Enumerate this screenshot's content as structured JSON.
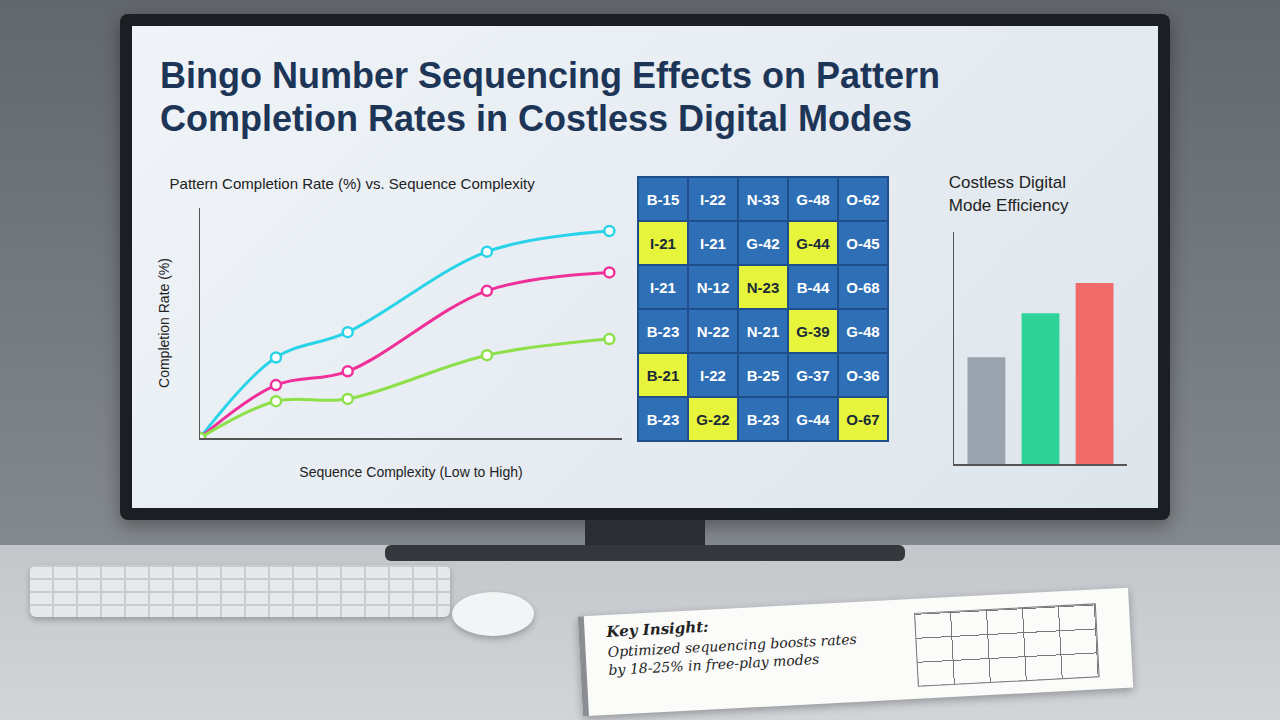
{
  "title": "Bingo Number Sequencing Effects on Pattern Completion Rates in Costless Digital Modes",
  "chart_data": [
    {
      "type": "line",
      "title": "Pattern Completion Rate (%) vs. Sequence Complexity",
      "x_label": "Sequence Complexity (Low to High)",
      "y_label": "Completion Rate (%)",
      "x": [
        0,
        1.8,
        3.5,
        6.8,
        9.7
      ],
      "series": [
        {
          "color": "#29d3e8",
          "values": [
            0,
            35,
            46,
            81,
            90
          ],
          "marker": "circle",
          "line_style": "solid"
        },
        {
          "color": "#f0309a",
          "values": [
            0,
            23,
            29,
            64,
            72
          ],
          "marker": "circle",
          "line_style": "solid"
        },
        {
          "color": "#8ee04a",
          "values": [
            0,
            16,
            17,
            36,
            43
          ],
          "marker": "circle",
          "line_style": "solid"
        }
      ],
      "xlim": [
        0,
        10
      ],
      "ylim": [
        0,
        100
      ],
      "tick_labels": false,
      "grid": false
    },
    {
      "type": "bar",
      "title": "Costless Digital Mode Efficiency",
      "categories": [
        null,
        null,
        null
      ],
      "values": [
        46,
        65,
        78
      ],
      "colors": [
        "#9aa3ad",
        "#2ed39a",
        "#f06a6a"
      ],
      "ylim": [
        0,
        100
      ],
      "tick_labels": false,
      "grid": false
    }
  ],
  "bingo_card": {
    "cells": [
      [
        "B-15",
        "I-22",
        "N-33",
        "G-48",
        "O-62"
      ],
      [
        "I-21",
        "I-21",
        "G-42",
        "G-44",
        "O-45"
      ],
      [
        "I-21",
        "N-12",
        "N-23",
        "B-44",
        "O-68"
      ],
      [
        "B-23",
        "N-22",
        "N-21",
        "G-39",
        "G-48"
      ],
      [
        "B-21",
        "I-22",
        "B-25",
        "G-37",
        "O-36"
      ],
      [
        "B-23",
        "G-22",
        "B-23",
        "G-44",
        "O-67"
      ]
    ],
    "marked": [
      [
        false,
        false,
        false,
        false,
        false
      ],
      [
        true,
        false,
        false,
        true,
        false
      ],
      [
        false,
        false,
        true,
        false,
        false
      ],
      [
        false,
        false,
        false,
        true,
        false
      ],
      [
        true,
        false,
        false,
        false,
        false
      ],
      [
        false,
        true,
        false,
        false,
        true
      ]
    ]
  },
  "note": {
    "heading": "Key Insight:",
    "text": "Optimized sequencing boosts rates by 18-25% in free-play modes"
  }
}
